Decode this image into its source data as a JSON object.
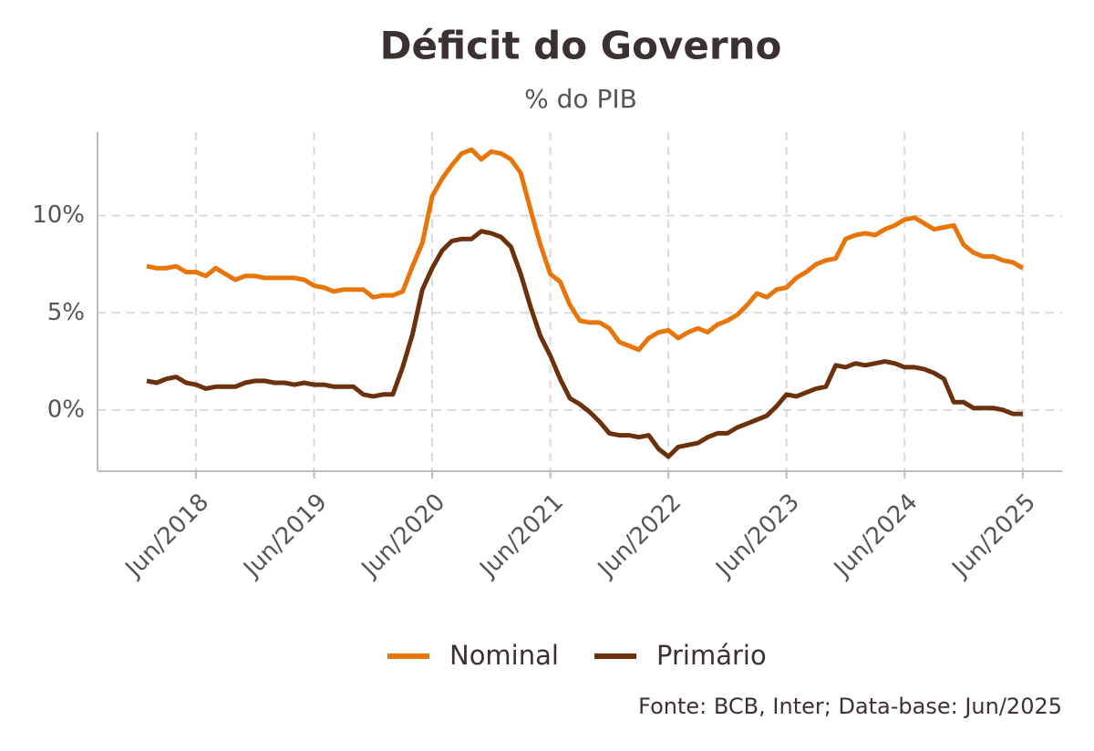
{
  "chart_data": {
    "type": "line",
    "title": "Déficit do Governo",
    "subtitle": "% do PIB",
    "source": "Fonte: BCB, Inter; Data-base: Jun/2025",
    "x": [
      "2018-01",
      "2018-02",
      "2018-03",
      "2018-04",
      "2018-05",
      "2018-06",
      "2018-07",
      "2018-08",
      "2018-09",
      "2018-10",
      "2018-11",
      "2018-12",
      "2019-01",
      "2019-02",
      "2019-03",
      "2019-04",
      "2019-05",
      "2019-06",
      "2019-07",
      "2019-08",
      "2019-09",
      "2019-10",
      "2019-11",
      "2019-12",
      "2020-01",
      "2020-02",
      "2020-03",
      "2020-04",
      "2020-05",
      "2020-06",
      "2020-07",
      "2020-08",
      "2020-09",
      "2020-10",
      "2020-11",
      "2020-12",
      "2021-01",
      "2021-02",
      "2021-03",
      "2021-04",
      "2021-05",
      "2021-06",
      "2021-07",
      "2021-08",
      "2021-09",
      "2021-10",
      "2021-11",
      "2021-12",
      "2022-01",
      "2022-02",
      "2022-03",
      "2022-04",
      "2022-05",
      "2022-06",
      "2022-07",
      "2022-08",
      "2022-09",
      "2022-10",
      "2022-11",
      "2022-12",
      "2023-01",
      "2023-02",
      "2023-03",
      "2023-04",
      "2023-05",
      "2023-06",
      "2023-07",
      "2023-08",
      "2023-09",
      "2023-10",
      "2023-11",
      "2023-12",
      "2024-01",
      "2024-02",
      "2024-03",
      "2024-04",
      "2024-05",
      "2024-06",
      "2024-07",
      "2024-08",
      "2024-09",
      "2024-10",
      "2024-11",
      "2024-12",
      "2025-01",
      "2025-02",
      "2025-03",
      "2025-04",
      "2025-05",
      "2025-06"
    ],
    "series": [
      {
        "name": "Nominal",
        "color": "#e8750a",
        "values": [
          7.4,
          7.3,
          7.3,
          7.4,
          7.1,
          7.1,
          6.9,
          7.3,
          7.0,
          6.7,
          6.9,
          6.9,
          6.8,
          6.8,
          6.8,
          6.8,
          6.7,
          6.4,
          6.3,
          6.1,
          6.2,
          6.2,
          6.2,
          5.8,
          5.9,
          5.9,
          6.1,
          7.4,
          8.6,
          11.0,
          11.9,
          12.6,
          13.2,
          13.4,
          12.9,
          13.3,
          13.2,
          12.9,
          12.2,
          10.3,
          8.5,
          7.0,
          6.6,
          5.4,
          4.6,
          4.5,
          4.5,
          4.2,
          3.5,
          3.3,
          3.1,
          3.7,
          4.0,
          4.1,
          3.7,
          4.0,
          4.2,
          4.0,
          4.4,
          4.6,
          4.9,
          5.4,
          6.0,
          5.8,
          6.2,
          6.3,
          6.8,
          7.1,
          7.5,
          7.7,
          7.8,
          8.8,
          9.0,
          9.1,
          9.0,
          9.3,
          9.5,
          9.8,
          9.9,
          9.6,
          9.3,
          9.4,
          9.5,
          8.5,
          8.1,
          7.9,
          7.9,
          7.7,
          7.6,
          7.3
        ]
      },
      {
        "name": "Primário",
        "color": "#6b300c",
        "values": [
          1.5,
          1.4,
          1.6,
          1.7,
          1.4,
          1.3,
          1.1,
          1.2,
          1.2,
          1.2,
          1.4,
          1.5,
          1.5,
          1.4,
          1.4,
          1.3,
          1.4,
          1.3,
          1.3,
          1.2,
          1.2,
          1.2,
          0.8,
          0.7,
          0.8,
          0.8,
          2.2,
          3.9,
          6.2,
          7.3,
          8.2,
          8.7,
          8.8,
          8.8,
          9.2,
          9.1,
          8.9,
          8.4,
          7.0,
          5.3,
          3.8,
          2.8,
          1.6,
          0.6,
          0.3,
          -0.1,
          -0.6,
          -1.2,
          -1.3,
          -1.3,
          -1.4,
          -1.3,
          -2.0,
          -2.4,
          -1.9,
          -1.8,
          -1.7,
          -1.4,
          -1.2,
          -1.2,
          -0.9,
          -0.7,
          -0.5,
          -0.3,
          0.2,
          0.8,
          0.7,
          0.9,
          1.1,
          1.2,
          2.3,
          2.2,
          2.4,
          2.3,
          2.4,
          2.5,
          2.4,
          2.2,
          2.2,
          2.1,
          1.9,
          1.6,
          0.4,
          0.4,
          0.1,
          0.1,
          0.1,
          0.0,
          -0.2,
          -0.2
        ]
      }
    ],
    "xlim": [
      "2017-08",
      "2025-10"
    ],
    "xticks": [
      {
        "value": "2018-06",
        "label": "Jun/2018"
      },
      {
        "value": "2019-06",
        "label": "Jun/2019"
      },
      {
        "value": "2020-06",
        "label": "Jun/2020"
      },
      {
        "value": "2021-06",
        "label": "Jun/2021"
      },
      {
        "value": "2022-06",
        "label": "Jun/2022"
      },
      {
        "value": "2023-06",
        "label": "Jun/2023"
      },
      {
        "value": "2024-06",
        "label": "Jun/2024"
      },
      {
        "value": "2025-06",
        "label": "Jun/2025"
      }
    ],
    "ylim": [
      -3.15,
      14.3
    ],
    "yticks": [
      {
        "value": 0,
        "label": "0%"
      },
      {
        "value": 5,
        "label": "5%"
      },
      {
        "value": 10,
        "label": "10%"
      }
    ],
    "grid": true,
    "legend": "bottom"
  }
}
